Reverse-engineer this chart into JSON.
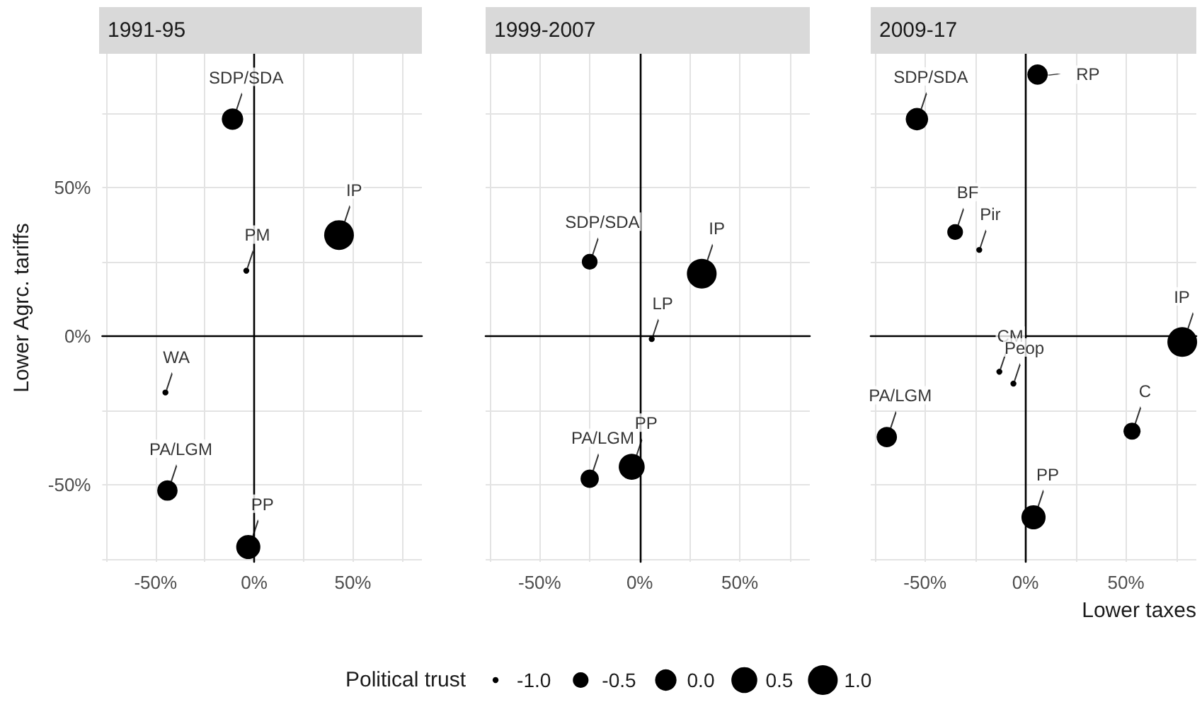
{
  "chart_data": [
    {
      "type": "bubble",
      "title": "1991-95",
      "ylabel": "Lower Agrc. tariffs",
      "xlim": [
        -77,
        85
      ],
      "ylim": [
        -76,
        95
      ],
      "xticks": [
        {
          "value": -75,
          "label": null
        },
        {
          "value": -50,
          "label": "-50%"
        },
        {
          "value": -25,
          "label": null
        },
        {
          "value": 0,
          "label": "0%"
        },
        {
          "value": 25,
          "label": null
        },
        {
          "value": 50,
          "label": "50%"
        },
        {
          "value": 75,
          "label": null
        }
      ],
      "yticks": [
        {
          "value": -75,
          "label": null
        },
        {
          "value": -50,
          "label": "-50%"
        },
        {
          "value": -25,
          "label": null
        },
        {
          "value": 0,
          "label": "0%"
        },
        {
          "value": 25,
          "label": null
        },
        {
          "value": 50,
          "label": "50%"
        },
        {
          "value": 75,
          "label": null
        }
      ],
      "grid": true,
      "series": [
        {
          "color": "#000000",
          "x": [
            -11,
            43,
            -4,
            -45,
            -44,
            -3
          ],
          "values": [
            73,
            34,
            22,
            -19,
            -52,
            -71
          ],
          "sizes": [
            0.52,
            1,
            0.04,
            0.04,
            0.47,
            0.66
          ]
        }
      ],
      "annotations": [
        {
          "text": "SDP/SDA",
          "x": -11,
          "y": 73
        },
        {
          "text": "IP",
          "x": 43,
          "y": 34
        },
        {
          "text": "PM",
          "x": -4,
          "y": 22
        },
        {
          "text": "WA",
          "x": -45,
          "y": -19
        },
        {
          "text": "PA/LGM",
          "x": -44,
          "y": -52
        },
        {
          "text": "PP",
          "x": -3,
          "y": -71
        }
      ]
    },
    {
      "type": "bubble",
      "title": "1999-2007",
      "tick_labels": "x",
      "xlim": [
        -77,
        85
      ],
      "ylim": [
        -76,
        95
      ],
      "xticks": [
        {
          "value": -75,
          "label": null
        },
        {
          "value": -50,
          "label": "-50%"
        },
        {
          "value": -25,
          "label": null
        },
        {
          "value": 0,
          "label": "0%"
        },
        {
          "value": 25,
          "label": null
        },
        {
          "value": 50,
          "label": "50%"
        },
        {
          "value": 75,
          "label": null
        }
      ],
      "yticks": [
        {
          "value": -75,
          "label": null
        },
        {
          "value": -50,
          "label": null
        },
        {
          "value": -25,
          "label": null
        },
        {
          "value": 0,
          "label": null
        },
        {
          "value": 25,
          "label": null
        },
        {
          "value": 50,
          "label": null
        },
        {
          "value": 75,
          "label": null
        }
      ],
      "grid": true,
      "series": [
        {
          "color": "#000000",
          "x": [
            -25,
            31,
            6,
            -25,
            -4
          ],
          "values": [
            25,
            21,
            -1,
            -48,
            -44
          ],
          "sizes": [
            0.28,
            1,
            0.04,
            0.38,
            0.76
          ]
        }
      ],
      "annotations": [
        {
          "text": "SDP/SDA",
          "x": -25,
          "y": 25
        },
        {
          "text": "IP",
          "x": 31,
          "y": 21
        },
        {
          "text": "LP",
          "x": 6,
          "y": -1
        },
        {
          "text": "PA/LGM",
          "x": -25,
          "y": -48
        },
        {
          "text": "PP",
          "x": -4,
          "y": -44
        }
      ]
    },
    {
      "type": "bubble",
      "title": "2009-17",
      "xlabel": "Lower taxes",
      "tick_labels": "x",
      "xlim": [
        -77,
        85
      ],
      "ylim": [
        -76,
        95
      ],
      "xticks": [
        {
          "value": -75,
          "label": null
        },
        {
          "value": -50,
          "label": "-50%"
        },
        {
          "value": -25,
          "label": null
        },
        {
          "value": 0,
          "label": "0%"
        },
        {
          "value": 25,
          "label": null
        },
        {
          "value": 50,
          "label": "50%"
        },
        {
          "value": 75,
          "label": null
        }
      ],
      "yticks": [
        {
          "value": -75,
          "label": null
        },
        {
          "value": -50,
          "label": null
        },
        {
          "value": -25,
          "label": null
        },
        {
          "value": 0,
          "label": null
        },
        {
          "value": 25,
          "label": null
        },
        {
          "value": 50,
          "label": null
        },
        {
          "value": 75,
          "label": null
        }
      ],
      "grid": true,
      "legend_title": "Political trust",
      "size_legend": [
        {
          "value": 0.04,
          "label": "-1.0"
        },
        {
          "value": 0.28,
          "label": "-0.5"
        },
        {
          "value": 0.52,
          "label": "0.0"
        },
        {
          "value": 0.76,
          "label": "0.5"
        },
        {
          "value": 1,
          "label": "1.0"
        }
      ],
      "series": [
        {
          "color": "#000000",
          "x": [
            6,
            -54,
            -35,
            -23,
            78,
            -13,
            -6,
            53,
            -69,
            4
          ],
          "values": [
            88,
            73,
            35,
            29,
            -2,
            -12,
            -16,
            -32,
            -34,
            -61
          ],
          "sizes": [
            0.47,
            0.57,
            0.28,
            0.04,
            1,
            0.04,
            0.04,
            0.33,
            0.47,
            0.66
          ]
        }
      ],
      "annotations": [
        {
          "text": "RP",
          "x": 6,
          "y": 88
        },
        {
          "text": "SDP/SDA",
          "x": -54,
          "y": 73
        },
        {
          "text": "BF",
          "x": -35,
          "y": 35
        },
        {
          "text": "Pir",
          "x": -23,
          "y": 29
        },
        {
          "text": "IP",
          "x": 78,
          "y": -2
        },
        {
          "text": "CM",
          "x": -13,
          "y": -12
        },
        {
          "text": "Peop",
          "x": -6,
          "y": -16
        },
        {
          "text": "C",
          "x": 53,
          "y": -32
        },
        {
          "text": "PA/LGM",
          "x": -69,
          "y": -34
        },
        {
          "text": "PP",
          "x": 4,
          "y": -61
        }
      ]
    }
  ]
}
